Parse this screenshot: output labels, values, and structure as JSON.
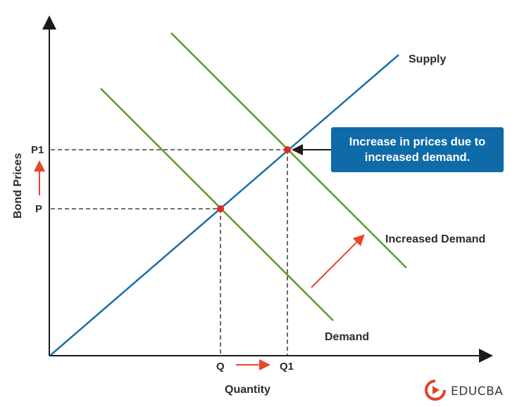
{
  "diagram": {
    "labels": {
      "supply": "Supply",
      "demand": "Demand",
      "increased_demand": "Increased Demand",
      "y_axis": "Bond Prices",
      "x_axis": "Quantity",
      "p": "P",
      "p1": "P1",
      "q": "Q",
      "q1": "Q1"
    },
    "callout": {
      "line1": "Increase in prices due to",
      "line2": "increased demand."
    },
    "colors": {
      "supply": "#1a6ea8",
      "demand": "#5a9a2a",
      "point": "#e02b20",
      "arrow": "#e8452a",
      "callout_bg": "#0f6aa8",
      "axis": "#1a1a1a"
    }
  },
  "brand": {
    "logo_icon": "educba-logo-icon",
    "name": "EDUCBA"
  }
}
